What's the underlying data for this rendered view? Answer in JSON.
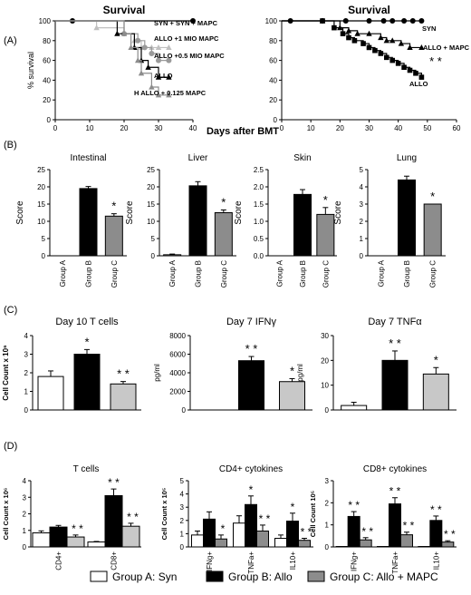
{
  "colors": {
    "groupA": "#ffffff",
    "groupB": "#000000",
    "groupC": "#8c8c8c",
    "groupCLight": "#c8c8c8",
    "grey1": "#8c8c8c",
    "grey2": "#bcbcbc"
  },
  "panel_letters": [
    "(A)",
    "(B)",
    "(C)",
    "(D)"
  ],
  "shared_xlabel": "Days after BMT",
  "legend": {
    "groupA": "Group A: Syn",
    "groupB": "Group B: Allo",
    "groupC": "Group C: Allo + MAPC"
  },
  "chart_data": [
    {
      "id": "survA1",
      "type": "line",
      "title": "Survival",
      "xlabel": "",
      "ylabel": "% survival",
      "xlim": [
        0,
        40
      ],
      "ylim": [
        0,
        100
      ],
      "xticks": [
        "0",
        "10",
        "20",
        "30",
        "40"
      ],
      "yticks": [
        "0",
        "20",
        "40",
        "60",
        "80",
        "100"
      ],
      "series": [
        {
          "name": "SYN + SYN + MAPC",
          "color": "#000000",
          "marker": "circle",
          "x": [
            0,
            5,
            40
          ],
          "y": [
            100,
            100,
            100
          ]
        },
        {
          "name": "ALLO +1 MIO MAPC",
          "color": "#c0c0c0",
          "marker": "triangle",
          "x": [
            0,
            12,
            20,
            23,
            25,
            28,
            30,
            33
          ],
          "y": [
            100,
            93,
            87,
            80,
            73,
            73,
            73,
            73
          ]
        },
        {
          "name": "ALLO +0.5 MIO MAPC",
          "color": "#9a9a9a",
          "marker": "circle",
          "x": [
            0,
            20,
            24,
            26,
            28,
            30,
            33
          ],
          "y": [
            100,
            87,
            80,
            73,
            67,
            60,
            60
          ]
        },
        {
          "name": "ALLO",
          "color": "#000000",
          "marker": "triangle",
          "x": [
            0,
            18,
            23,
            25,
            27,
            30,
            33
          ],
          "y": [
            100,
            87,
            73,
            60,
            53,
            43,
            43
          ]
        },
        {
          "name": "H ALLO + 0.125 MAPC",
          "color": "#8c8c8c",
          "marker": "triangle",
          "x": [
            0,
            20,
            22,
            24,
            25,
            28,
            30,
            33
          ],
          "y": [
            100,
            87,
            73,
            60,
            47,
            33,
            25,
            25
          ]
        }
      ],
      "labels": [
        "SYN + SYN + MAPC",
        "ALLO +1 MIO MAPC",
        "ALLO +0.5 MIO MAPC",
        "ALLO",
        "H ALLO + 0.125 MAPC"
      ]
    },
    {
      "id": "survA2",
      "type": "line",
      "title": "Survival",
      "xlabel": "",
      "ylabel": "",
      "xlim": [
        0,
        60
      ],
      "ylim": [
        0,
        100
      ],
      "xticks": [
        "0",
        "10",
        "20",
        "30",
        "40",
        "50",
        "60"
      ],
      "yticks": [
        "0",
        "20",
        "40",
        "60",
        "80",
        "100"
      ],
      "series": [
        {
          "name": "SYN",
          "color": "#000000",
          "marker": "circle",
          "x": [
            0,
            3,
            14,
            22,
            30,
            35,
            38,
            42,
            45,
            48
          ],
          "y": [
            100,
            100,
            100,
            100,
            100,
            100,
            100,
            100,
            100,
            100
          ]
        },
        {
          "name": "ALLO + MAPC",
          "color": "#000000",
          "marker": "triangle",
          "x": [
            0,
            14,
            20,
            23,
            26,
            30,
            34,
            36,
            38,
            41,
            44,
            48
          ],
          "y": [
            100,
            100,
            93,
            90,
            87,
            87,
            83,
            80,
            80,
            77,
            73,
            73
          ]
        },
        {
          "name": "ALLO",
          "color": "#000000",
          "marker": "square",
          "x": [
            0,
            14,
            18,
            21,
            23,
            25,
            28,
            30,
            32,
            34,
            36,
            38,
            40,
            42,
            44,
            46,
            48
          ],
          "y": [
            100,
            100,
            93,
            87,
            83,
            80,
            77,
            73,
            70,
            67,
            63,
            60,
            57,
            53,
            50,
            47,
            43
          ]
        }
      ],
      "labels": [
        "SYN",
        "ALLO + MAPC",
        "ALLO"
      ],
      "significance": "* *"
    },
    {
      "id": "B1",
      "type": "bar",
      "title": "Intestinal",
      "ylabel": "Score",
      "categories": [
        "Group A",
        "Group B",
        "Group C"
      ],
      "values": [
        0,
        19.5,
        11.5
      ],
      "errors": [
        0,
        0.6,
        0.7
      ],
      "ylim": [
        0,
        25
      ],
      "yticks": [
        "0",
        "5",
        "10",
        "15",
        "20",
        "25"
      ],
      "stars": [
        "",
        "",
        "*"
      ]
    },
    {
      "id": "B2",
      "type": "bar",
      "title": "Liver",
      "ylabel": "Score",
      "categories": [
        "Group A",
        "Group B",
        "Group C"
      ],
      "values": [
        0.3,
        20.3,
        12.5
      ],
      "errors": [
        0.2,
        1.2,
        0.8
      ],
      "ylim": [
        0,
        25
      ],
      "yticks": [
        "0",
        "5",
        "10",
        "15",
        "20",
        "25"
      ],
      "stars": [
        "",
        "",
        "*"
      ]
    },
    {
      "id": "B3",
      "type": "bar",
      "title": "Skin",
      "ylabel": "Score",
      "categories": [
        "Group A",
        "Group B",
        "Group C"
      ],
      "values": [
        0,
        1.78,
        1.2
      ],
      "errors": [
        0,
        0.14,
        0.2
      ],
      "ylim": [
        0,
        2.5
      ],
      "yticks": [
        "0.0",
        "0.5",
        "1.0",
        "1.5",
        "2.0",
        "2.5"
      ],
      "stars": [
        "",
        "",
        "*"
      ]
    },
    {
      "id": "B4",
      "type": "bar",
      "title": "Lung",
      "ylabel": "Score",
      "categories": [
        "Group A",
        "Group B",
        "Group C"
      ],
      "values": [
        0,
        4.4,
        3.0
      ],
      "errors": [
        0,
        0.22,
        0
      ],
      "ylim": [
        0,
        5
      ],
      "yticks": [
        "0",
        "1",
        "2",
        "3",
        "4",
        "5"
      ],
      "stars": [
        "",
        "",
        "*"
      ]
    },
    {
      "id": "C1",
      "type": "bar",
      "title": "Day 10 T cells",
      "ylabel": "Cell Count x 10⁶",
      "categories": [
        "Group A",
        "Group B",
        "Group C"
      ],
      "values": [
        1.8,
        3.0,
        1.4
      ],
      "errors": [
        0.3,
        0.25,
        0.13
      ],
      "ylim": [
        0,
        4
      ],
      "yticks": [
        "0",
        "1",
        "2",
        "3",
        "4"
      ],
      "stars": [
        "",
        "*",
        "* *"
      ]
    },
    {
      "id": "C2",
      "type": "bar",
      "title": "Day 7 IFNγ",
      "ylabel": "pg/ml",
      "categories": [
        "Group A",
        "Group B",
        "Group C"
      ],
      "values": [
        0,
        5300,
        3050
      ],
      "errors": [
        0,
        450,
        320
      ],
      "ylim": [
        0,
        8000
      ],
      "yticks": [
        "0",
        "2000",
        "4000",
        "6000",
        "8000"
      ],
      "stars": [
        "",
        "* *",
        "*"
      ]
    },
    {
      "id": "C3",
      "type": "bar",
      "title": "Day 7 TNFα",
      "ylabel": "pg/ml",
      "categories": [
        "Group A",
        "Group B",
        "Group C"
      ],
      "values": [
        1.8,
        20,
        14.5
      ],
      "errors": [
        1.3,
        3.8,
        2.6
      ],
      "ylim": [
        0,
        30
      ],
      "yticks": [
        "0",
        "10",
        "20",
        "30"
      ],
      "stars": [
        "",
        "* *",
        "*"
      ]
    },
    {
      "id": "D1",
      "type": "bar",
      "title": "T cells",
      "ylabel": "Cell Count x 10⁶",
      "categories": [
        "CD4+",
        "CD8+"
      ],
      "series": [
        {
          "name": "Group A: Syn",
          "values": [
            0.85,
            0.3
          ],
          "errors": [
            0.12,
            0.03
          ],
          "stars": [
            "",
            ""
          ]
        },
        {
          "name": "Group B: Allo",
          "values": [
            1.2,
            3.1
          ],
          "errors": [
            0.1,
            0.4
          ],
          "stars": [
            "",
            "* *"
          ]
        },
        {
          "name": "Group C: Allo + MAPC",
          "values": [
            0.6,
            1.25
          ],
          "errors": [
            0.12,
            0.18
          ],
          "stars": [
            "* *",
            "* *"
          ]
        }
      ],
      "ylim": [
        0,
        4
      ],
      "yticks": [
        "0",
        "1",
        "2",
        "3",
        "4"
      ]
    },
    {
      "id": "D2",
      "type": "bar",
      "title": "CD4+ cytokines",
      "ylabel": "Cell Count x 10⁵",
      "categories": [
        "IFNg+",
        "TNFa+",
        "IL10+"
      ],
      "series": [
        {
          "name": "Group A: Syn",
          "values": [
            0.9,
            1.8,
            0.65
          ],
          "errors": [
            0.3,
            0.55,
            0.25
          ],
          "stars": [
            "",
            "",
            ""
          ]
        },
        {
          "name": "Group B: Allo",
          "values": [
            2.1,
            3.2,
            1.95
          ],
          "errors": [
            0.55,
            0.65,
            0.6
          ],
          "stars": [
            "",
            "*",
            "*"
          ]
        },
        {
          "name": "Group C: Allo + MAPC",
          "values": [
            0.6,
            1.2,
            0.5
          ],
          "errors": [
            0.3,
            0.45,
            0.15
          ],
          "stars": [
            "*",
            "* *",
            "* *"
          ]
        }
      ],
      "ylim": [
        0,
        5
      ],
      "yticks": [
        "0",
        "1",
        "2",
        "3",
        "4",
        "5"
      ]
    },
    {
      "id": "D3",
      "type": "bar",
      "title": "CD8+ cytokines",
      "ylabel": "Cell Count 10⁵",
      "categories": [
        "IFNg+",
        "TNFa+",
        "IL10+"
      ],
      "series": [
        {
          "name": "Group A: Syn",
          "values": [
            0.02,
            0.02,
            0.02
          ],
          "errors": [
            0,
            0,
            0
          ],
          "stars": [
            "",
            "",
            ""
          ]
        },
        {
          "name": "Group B: Allo",
          "values": [
            1.38,
            1.95,
            1.2
          ],
          "errors": [
            0.22,
            0.28,
            0.2
          ],
          "stars": [
            "* *",
            "* *",
            "* *"
          ]
        },
        {
          "name": "Group C: Allo + MAPC",
          "values": [
            0.32,
            0.55,
            0.22
          ],
          "errors": [
            0.1,
            0.12,
            0.06
          ],
          "stars": [
            "* *",
            "* *",
            "* *"
          ]
        }
      ],
      "ylim": [
        0,
        3
      ],
      "yticks": [
        "0",
        "1",
        "2",
        "3"
      ]
    }
  ]
}
